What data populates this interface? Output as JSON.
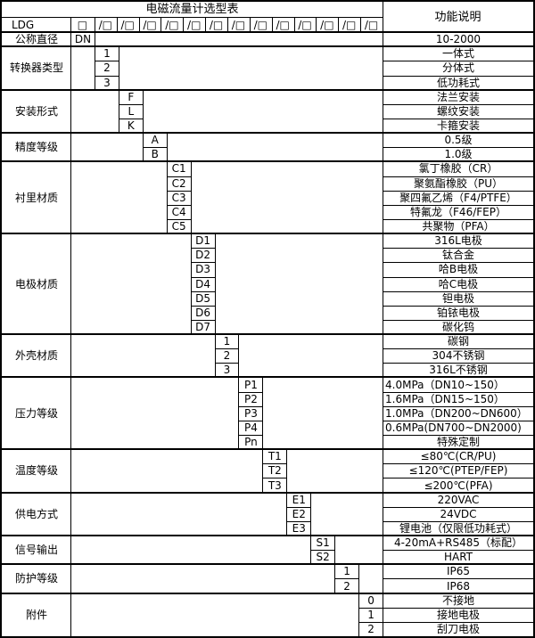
{
  "table": {
    "title": "电磁流量计选型表",
    "right_header": "功能说明",
    "model_row": {
      "label": "LDG",
      "first_box": "□",
      "slot_box": "/□",
      "slot_count": 13
    },
    "sections": [
      {
        "label": "公称直径",
        "rows": [
          {
            "code": "DN",
            "desc": "10-2000"
          }
        ]
      },
      {
        "label": "转换器类型",
        "rows": [
          {
            "code": "1",
            "desc": "一体式"
          },
          {
            "code": "2",
            "desc": "分体式"
          },
          {
            "code": "3",
            "desc": "低功耗式"
          }
        ]
      },
      {
        "label": "安装形式",
        "rows": [
          {
            "code": "F",
            "desc": "法兰安装"
          },
          {
            "code": "L",
            "desc": "螺纹安装"
          },
          {
            "code": "K",
            "desc": "卡箍安装"
          }
        ]
      },
      {
        "label": "精度等级",
        "rows": [
          {
            "code": "A",
            "desc": "0.5级"
          },
          {
            "code": "B",
            "desc": "1.0级"
          }
        ]
      },
      {
        "label": "衬里材质",
        "rows": [
          {
            "code": "C1",
            "desc": "氯丁橡胶（CR）"
          },
          {
            "code": "C2",
            "desc": "聚氨酯橡胶（PU）"
          },
          {
            "code": "C3",
            "desc": "聚四氟乙烯（F4/PTFE）"
          },
          {
            "code": "C4",
            "desc": "特氟龙（F46/FEP）"
          },
          {
            "code": "C5",
            "desc": "共聚物（PFA）"
          }
        ]
      },
      {
        "label": "电极材质",
        "rows": [
          {
            "code": "D1",
            "desc": "316L电极"
          },
          {
            "code": "D2",
            "desc": "钛合金"
          },
          {
            "code": "D3",
            "desc": "哈B电极"
          },
          {
            "code": "D4",
            "desc": "哈C电极"
          },
          {
            "code": "D5",
            "desc": "钽电极"
          },
          {
            "code": "D6",
            "desc": "铂铱电极"
          },
          {
            "code": "D7",
            "desc": "碳化钨"
          }
        ]
      },
      {
        "label": "外壳材质",
        "rows": [
          {
            "code": "1",
            "desc": "碳钢"
          },
          {
            "code": "2",
            "desc": "304不锈钢"
          },
          {
            "code": "3",
            "desc": "316L不锈钢"
          }
        ]
      },
      {
        "label": "压力等级",
        "rows": [
          {
            "code": "P1",
            "desc": "4.0MPa（DN10~150）",
            "align": "left"
          },
          {
            "code": "P2",
            "desc": "1.6MPa（DN15~150）",
            "align": "left"
          },
          {
            "code": "P3",
            "desc": "1.0MPa（DN200~DN600）",
            "align": "left"
          },
          {
            "code": "P4",
            "desc": "0.6MPa(DN700~DN2000)",
            "align": "left"
          },
          {
            "code": "Pn",
            "desc": "特殊定制"
          }
        ]
      },
      {
        "label": "温度等级",
        "rows": [
          {
            "code": "T1",
            "desc": "≤80℃(CR/PU)"
          },
          {
            "code": "T2",
            "desc": "≤120℃(PTEP/FEP)"
          },
          {
            "code": "T3",
            "desc": "≤200℃(PFA)"
          }
        ]
      },
      {
        "label": "供电方式",
        "rows": [
          {
            "code": "E1",
            "desc": "220VAC"
          },
          {
            "code": "E2",
            "desc": "24VDC"
          },
          {
            "code": "E3",
            "desc": "锂电池（仅限低功耗式）"
          }
        ]
      },
      {
        "label": "信号输出",
        "rows": [
          {
            "code": "S1",
            "desc": "4-20mA+RS485（标配）"
          },
          {
            "code": "S2",
            "desc": "HART"
          }
        ]
      },
      {
        "label": "防护等级",
        "rows": [
          {
            "code": "1",
            "desc": "IP65"
          },
          {
            "code": "2",
            "desc": "IP68"
          }
        ]
      },
      {
        "label": "附件",
        "rows": [
          {
            "code": "0",
            "desc": "不接地"
          },
          {
            "code": "1",
            "desc": "接地电极"
          },
          {
            "code": "2",
            "desc": "刮刀电极"
          }
        ]
      }
    ]
  },
  "colors": {
    "background": "#ffffff",
    "text": "#000000",
    "border": "#000000"
  }
}
